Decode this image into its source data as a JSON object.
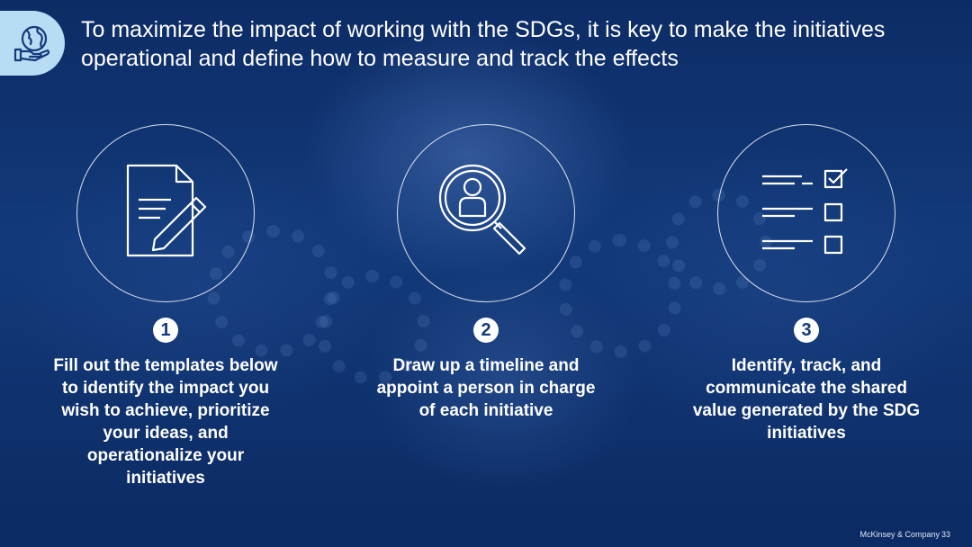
{
  "header": {
    "title": "To maximize the impact of working with the SDGs, it is key to make the initiatives operational and define how to measure and track the effects",
    "icon": "globe-hand-icon"
  },
  "steps": [
    {
      "number": "1",
      "icon": "document-pencil-icon",
      "text": "Fill out the templates below to identify the impact you wish to achieve, prioritize your ideas, and operationalize your initiatives"
    },
    {
      "number": "2",
      "icon": "magnifier-person-icon",
      "text": "Draw up a timeline and appoint a person in charge of each initiative"
    },
    {
      "number": "3",
      "icon": "checklist-icon",
      "text": "Identify, track, and communicate the shared value generated by the SDG initiatives"
    }
  ],
  "footer": {
    "company": "McKinsey & Company",
    "page": "33"
  },
  "colors": {
    "background": "#0f2f6a",
    "icon_badge": "#b8dcf3",
    "text": "#ffffff"
  }
}
